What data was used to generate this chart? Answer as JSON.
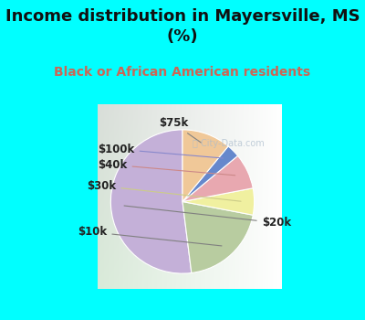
{
  "title": "Income distribution in Mayersville, MS\n(%)",
  "subtitle": "Black or African American residents",
  "title_color": "#111111",
  "subtitle_color": "#cc6655",
  "bg_color": "#00FFFF",
  "chart_bg_left": "#c8e8c8",
  "chart_bg_right": "#e8f0f8",
  "labels": [
    "$20k",
    "$10k",
    "$30k",
    "$40k",
    "$100k",
    "$75k"
  ],
  "values": [
    52,
    20,
    6,
    8,
    3,
    11
  ],
  "colors": [
    "#c4b0d8",
    "#b8cca0",
    "#f0f0a0",
    "#e8a8b0",
    "#6688cc",
    "#f0c898"
  ],
  "label_fontsize": 8.5,
  "title_fontsize": 13,
  "subtitle_fontsize": 10,
  "watermark": "City-Data.com"
}
